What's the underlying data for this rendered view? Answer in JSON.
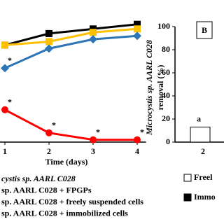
{
  "chart_data": [
    {
      "type": "line",
      "x_label": "Time (days)",
      "xlim": [
        0.9,
        4.2
      ],
      "xticks": [
        1,
        2,
        3,
        4
      ],
      "ylim": [
        0,
        120
      ],
      "x": [
        1,
        2,
        3,
        4
      ],
      "series": [
        {
          "name": "cystis sp. AARL C028",
          "color": "#000000",
          "marker": "square",
          "values": [
            84,
            94,
            98,
            102
          ]
        },
        {
          "name": "sp. AARL C028 + FPGPs",
          "color": "#ffc000",
          "marker": "square",
          "values": [
            84,
            87,
            95,
            98
          ]
        },
        {
          "name": "sp. AARL C028 + freely suspended cells",
          "color": "#2e75b6",
          "marker": "diamond",
          "values": [
            64,
            81,
            89,
            92
          ]
        },
        {
          "name": "sp. AARL C028 + immobilized cells",
          "color": "#ff0000",
          "marker": "circle",
          "values": [
            28,
            8,
            2,
            2
          ]
        }
      ],
      "annotations": [
        {
          "text": "*",
          "x": 1,
          "y": 64
        },
        {
          "text": "*",
          "x": 1,
          "y": 28
        },
        {
          "text": "*",
          "x": 2,
          "y": 8
        },
        {
          "text": "*",
          "x": 3,
          "y": 2
        },
        {
          "text": "*",
          "x": 4,
          "y": 2
        }
      ]
    },
    {
      "type": "bar",
      "panel_label": "B",
      "y_label": [
        "Microcystis sp. AARL C028",
        "removal (%)"
      ],
      "ylim": [
        0,
        100
      ],
      "yticks": [
        0,
        20,
        40,
        60,
        80,
        100
      ],
      "categories": [
        "2"
      ],
      "series": [
        {
          "name": "Freel",
          "color": "#ffffff",
          "values": [
            13
          ]
        },
        {
          "name": "Immo",
          "color": "#000000",
          "values": [
            null
          ]
        }
      ],
      "annotations": [
        {
          "text": "a",
          "category": "2",
          "y": 13
        }
      ]
    }
  ]
}
